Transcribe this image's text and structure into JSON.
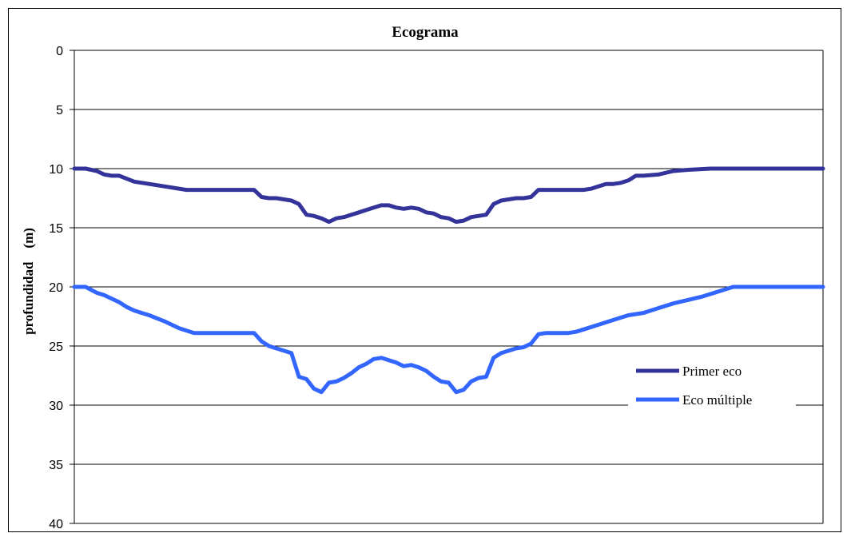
{
  "chart_data": {
    "type": "line",
    "title": "Ecograma",
    "ylabel": "profundidad    (m)",
    "xlabel": "",
    "ylim": [
      0,
      40
    ],
    "y_inverted": true,
    "yticks": [
      "0",
      "5",
      "10",
      "15",
      "20",
      "25",
      "30",
      "35",
      "40"
    ],
    "grid": "horizontal",
    "legend_position": "right",
    "series": [
      {
        "name": "Primer eco",
        "color": "#333399",
        "x": [
          0,
          1.5,
          3,
          4,
          5,
          6,
          8,
          10,
          12,
          15,
          18,
          20,
          22,
          24,
          25,
          26,
          27,
          28,
          29,
          30,
          31,
          32,
          33,
          34,
          35,
          36,
          37,
          38,
          39,
          40,
          41,
          42,
          43,
          44,
          45,
          46,
          47,
          48,
          49,
          50,
          51,
          52,
          53,
          54,
          55,
          56,
          57,
          58,
          59,
          60,
          61,
          62,
          63,
          64,
          65,
          66,
          67,
          68,
          69,
          70,
          71,
          72,
          73,
          74,
          75,
          76,
          78,
          80,
          82,
          85,
          88,
          90,
          92,
          94,
          95,
          96,
          98.5,
          100
        ],
        "values": [
          10,
          10,
          10.2,
          10.5,
          10.6,
          10.6,
          11.1,
          11.3,
          11.5,
          11.8,
          11.8,
          11.8,
          11.8,
          11.8,
          12.4,
          12.5,
          12.5,
          12.6,
          12.7,
          13.0,
          13.9,
          14.0,
          14.2,
          14.5,
          14.2,
          14.1,
          13.9,
          13.7,
          13.5,
          13.3,
          13.1,
          13.1,
          13.3,
          13.4,
          13.3,
          13.4,
          13.7,
          13.8,
          14.1,
          14.2,
          14.5,
          14.4,
          14.1,
          14.0,
          13.9,
          13.0,
          12.7,
          12.6,
          12.5,
          12.5,
          12.4,
          11.8,
          11.8,
          11.8,
          11.8,
          11.8,
          11.8,
          11.8,
          11.7,
          11.5,
          11.3,
          11.3,
          11.2,
          11.0,
          10.6,
          10.6,
          10.5,
          10.2,
          10.1,
          10.0,
          10.0,
          10.0,
          10.0,
          10.0,
          10.0,
          10.0,
          10.0,
          10.0
        ]
      },
      {
        "name": "Eco múltiple",
        "color": "#3366FF",
        "x": [
          0,
          1.5,
          3,
          4,
          5,
          6,
          7,
          8,
          9,
          10,
          12,
          14,
          16,
          18,
          20,
          22,
          24,
          25,
          26,
          27,
          28,
          29,
          30,
          31,
          32,
          33,
          34,
          35,
          36,
          37,
          38,
          39,
          40,
          41,
          42,
          43,
          44,
          45,
          46,
          47,
          48,
          49,
          50,
          51,
          52,
          53,
          54,
          55,
          56,
          57,
          58,
          59,
          60,
          61,
          62,
          63,
          64,
          65,
          66,
          67,
          68,
          70,
          72,
          74,
          76,
          78,
          80,
          82,
          84,
          86,
          88,
          90,
          92,
          94,
          96,
          98.5,
          100
        ],
        "values": [
          20,
          20,
          20.5,
          20.7,
          21.0,
          21.3,
          21.7,
          22.0,
          22.2,
          22.4,
          22.9,
          23.5,
          23.9,
          23.9,
          23.9,
          23.9,
          23.9,
          24.6,
          25.0,
          25.2,
          25.4,
          25.6,
          27.6,
          27.8,
          28.6,
          28.9,
          28.1,
          28.0,
          27.7,
          27.3,
          26.8,
          26.5,
          26.1,
          26.0,
          26.2,
          26.4,
          26.7,
          26.6,
          26.8,
          27.1,
          27.6,
          28.0,
          28.1,
          28.9,
          28.7,
          28.0,
          27.7,
          27.6,
          26.0,
          25.6,
          25.4,
          25.2,
          25.1,
          24.8,
          24.0,
          23.9,
          23.9,
          23.9,
          23.9,
          23.8,
          23.6,
          23.2,
          22.8,
          22.4,
          22.2,
          21.8,
          21.4,
          21.1,
          20.8,
          20.4,
          20.0,
          20.0,
          20.0,
          20.0,
          20.0,
          20.0,
          20.0
        ]
      }
    ]
  }
}
